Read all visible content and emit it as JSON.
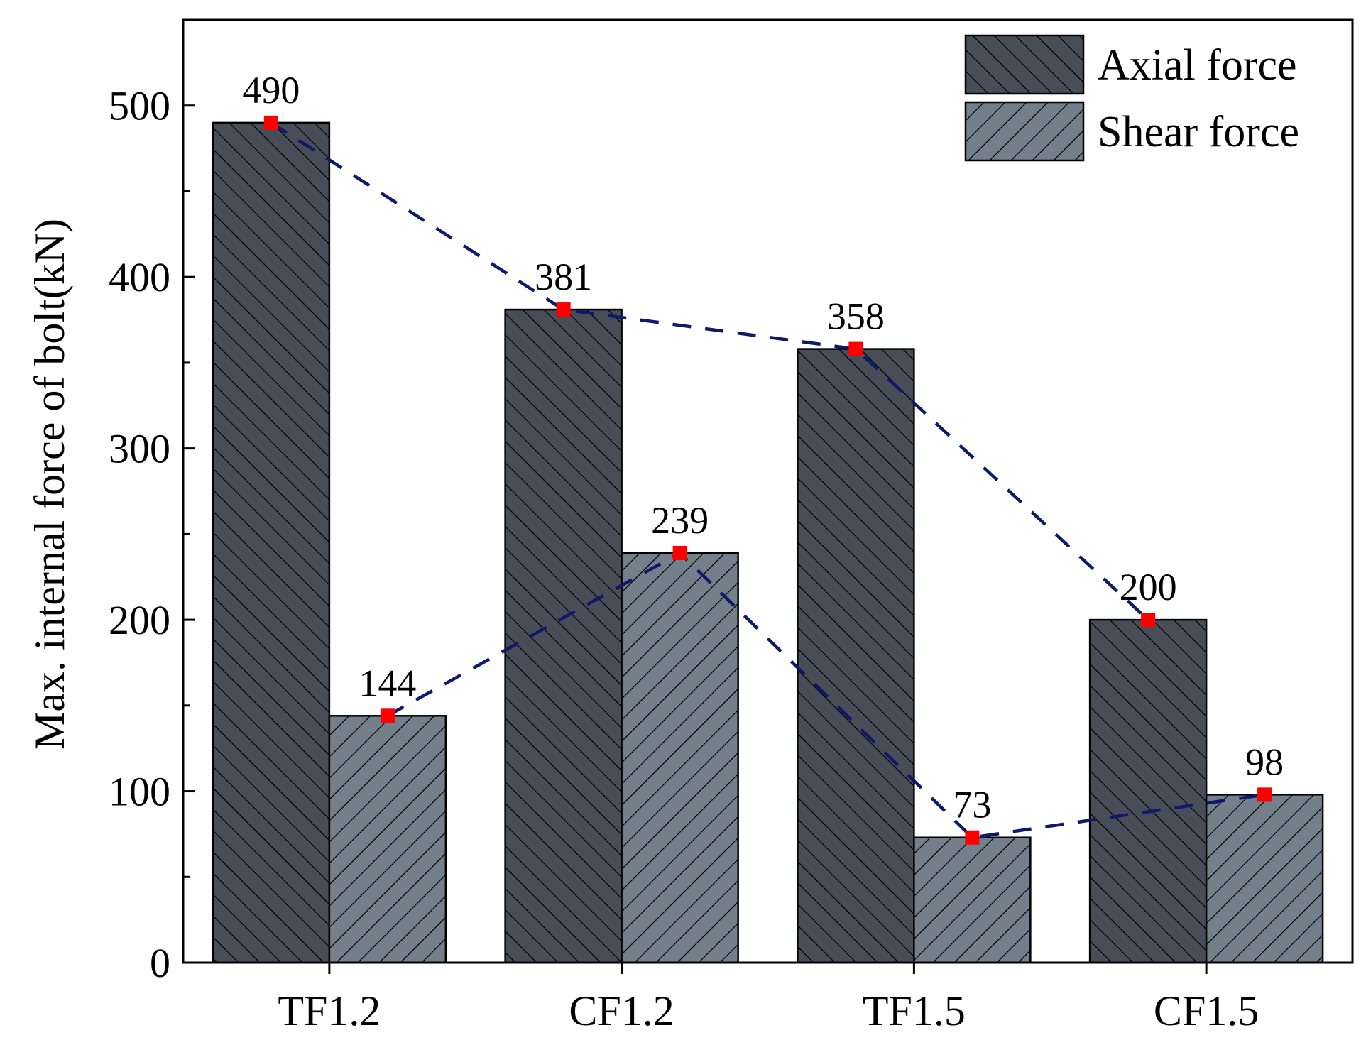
{
  "chart_data": {
    "type": "bar",
    "title": "",
    "xlabel": "",
    "ylabel": "Max. internal force of bolt(kN)",
    "ylim": [
      0,
      550
    ],
    "yticks": [
      0,
      100,
      200,
      300,
      400,
      500
    ],
    "ytick_labels": [
      "0",
      "100",
      "200",
      "300",
      "400",
      "500"
    ],
    "grid": false,
    "legend_position": "top-right",
    "categories": [
      "TF1.2",
      "CF1.2",
      "TF1.5",
      "CF1.5"
    ],
    "series": [
      {
        "name": "Axial force",
        "values": [
          490,
          381,
          358,
          200
        ],
        "labels": [
          "490",
          "381",
          "358",
          "200"
        ],
        "color": "#474e58",
        "hatch": "backslash"
      },
      {
        "name": "Shear force",
        "values": [
          144,
          239,
          73,
          98
        ],
        "labels": [
          "144",
          "239",
          "73",
          "98"
        ],
        "color": "#737f8a",
        "hatch": "slash"
      }
    ],
    "trend_line": {
      "style": "dashed",
      "color": "#0d1a6b",
      "marker_color": "#ff0000",
      "path": [
        {
          "series": 0,
          "category": 0
        },
        {
          "series": 0,
          "category": 1
        },
        {
          "series": 0,
          "category": 2
        },
        {
          "series": 0,
          "category": 3
        }
      ],
      "path2": [
        {
          "series": 1,
          "category": 0
        },
        {
          "series": 1,
          "category": 1
        },
        {
          "series": 1,
          "category": 2
        },
        {
          "series": 1,
          "category": 3
        }
      ]
    }
  }
}
